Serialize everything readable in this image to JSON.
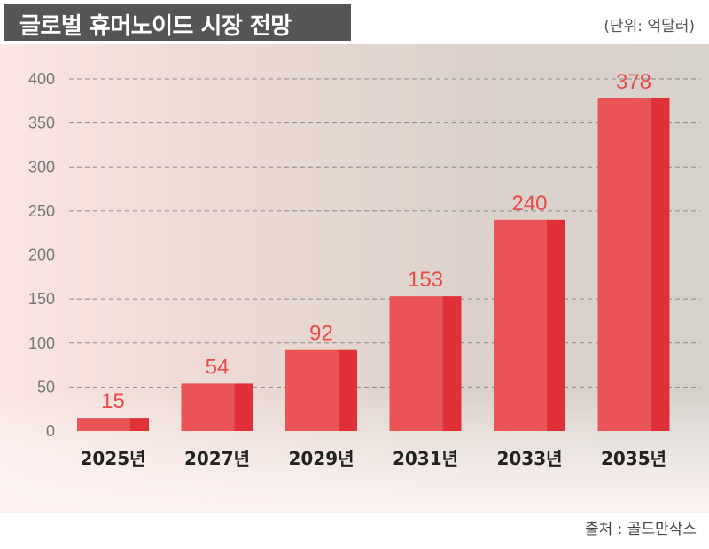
{
  "header": {
    "title": "글로벌 휴머노이드 시장 전망",
    "unit": "(단위: 억달러)"
  },
  "footer": {
    "source": "출처 : 골드만삭스"
  },
  "colors": {
    "bar_front": "#ea5456",
    "bar_side": "#e03038",
    "grid": "#8a8a8a",
    "label": "#ea4a4a"
  },
  "chart_data": {
    "type": "bar",
    "categories": [
      "2025년",
      "2027년",
      "2029년",
      "2031년",
      "2033년",
      "2035년"
    ],
    "values": [
      15,
      54,
      92,
      153,
      240,
      378
    ],
    "yticks": [
      0,
      50,
      100,
      150,
      200,
      250,
      300,
      350,
      400
    ],
    "ylim": [
      0,
      400
    ],
    "grid": true,
    "title": "글로벌 휴머노이드 시장 전망",
    "ylabel": "(단위: 억달러)",
    "xlabel": ""
  }
}
